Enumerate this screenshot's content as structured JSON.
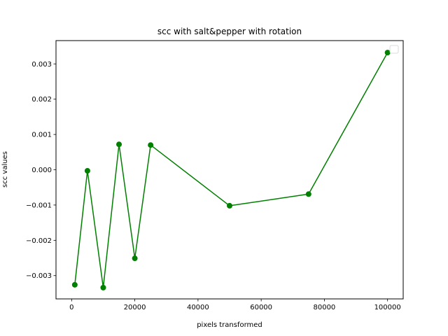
{
  "chart_data": {
    "type": "line",
    "title": "scc with salt&pepper with rotation",
    "xlabel": "pixels transformed",
    "ylabel": "scc values",
    "xlim": [
      -4950,
      104950
    ],
    "ylim": [
      -0.00366,
      0.00366
    ],
    "xticks": [
      {
        "value": 0,
        "label": "0"
      },
      {
        "value": 20000,
        "label": "20000"
      },
      {
        "value": 40000,
        "label": "40000"
      },
      {
        "value": 60000,
        "label": "60000"
      },
      {
        "value": 80000,
        "label": "80000"
      },
      {
        "value": 100000,
        "label": "100000"
      }
    ],
    "yticks": [
      {
        "value": -0.003,
        "label": "−0.003"
      },
      {
        "value": -0.002,
        "label": "−0.002"
      },
      {
        "value": -0.001,
        "label": "−0.001"
      },
      {
        "value": 0.0,
        "label": "0.000"
      },
      {
        "value": 0.001,
        "label": "0.001"
      },
      {
        "value": 0.002,
        "label": "0.002"
      },
      {
        "value": 0.003,
        "label": "0.003"
      }
    ],
    "grid": false,
    "legend": "top-right, empty",
    "series": [
      {
        "color": "#008000",
        "marker": "circle",
        "x": [
          1000,
          5000,
          10000,
          15000,
          20000,
          25000,
          50000,
          75000,
          100000
        ],
        "y": [
          -0.00326,
          -3e-05,
          -0.00334,
          0.00072,
          -0.00251,
          0.0007,
          -0.00102,
          -0.00069,
          0.00332
        ]
      }
    ]
  }
}
